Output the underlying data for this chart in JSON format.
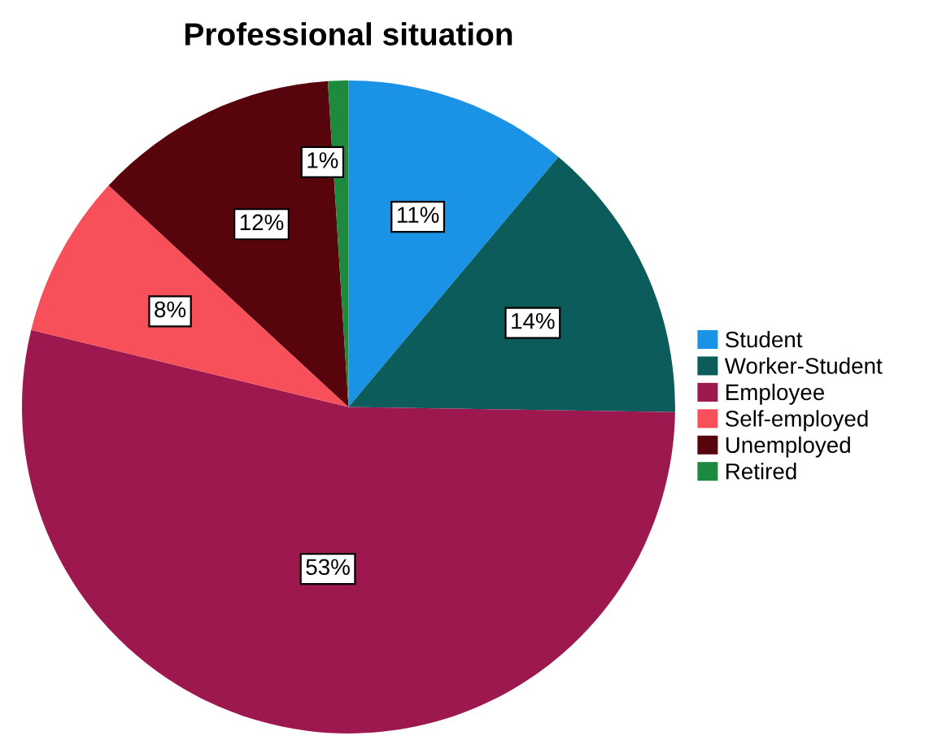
{
  "chart_data": {
    "type": "pie",
    "title": "Professional situation",
    "categories": [
      "Student",
      "Worker-Student",
      "Employee",
      "Self-employed",
      "Unemployed",
      "Retired"
    ],
    "values": [
      11,
      14,
      53,
      8,
      12,
      1
    ],
    "colors": [
      "#1a93e6",
      "#0b5c5a",
      "#9e1850",
      "#f7505a",
      "#58040c",
      "#1e8a3e"
    ],
    "value_labels": [
      "11%",
      "14%",
      "53%",
      "8%",
      "12%",
      "1%"
    ],
    "legend": "right"
  }
}
